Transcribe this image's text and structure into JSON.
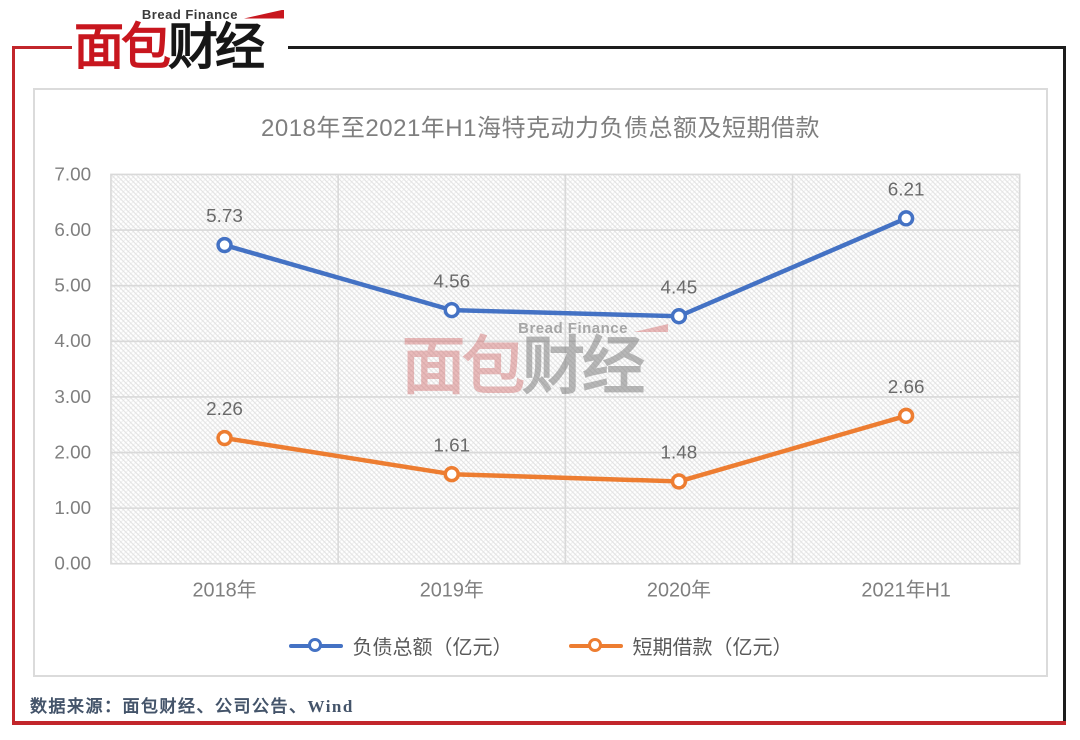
{
  "logo": {
    "tagline": "Bread Finance",
    "brand_red": "面包",
    "brand_dark": "财经"
  },
  "watermark": {
    "tagline": "Bread Finance",
    "brand_red": "面包",
    "brand_gray": "财经"
  },
  "source_note": "数据来源：面包财经、公司公告、Wind",
  "chart_data": {
    "type": "line",
    "title": "2018年至2021年H1海特克动力负债总额及短期借款",
    "categories": [
      "2018年",
      "2019年",
      "2020年",
      "2021年H1"
    ],
    "series": [
      {
        "name": "负债总额（亿元）",
        "color": "#4472C4",
        "values": [
          5.73,
          4.56,
          4.45,
          6.21
        ]
      },
      {
        "name": "短期借款（亿元）",
        "color": "#ED7D31",
        "values": [
          2.26,
          1.61,
          1.48,
          2.66
        ]
      }
    ],
    "ylim": [
      0,
      7
    ],
    "ytick_labels": [
      "0.00",
      "1.00",
      "2.00",
      "3.00",
      "4.00",
      "5.00",
      "6.00",
      "7.00"
    ],
    "grid": true,
    "legend_position": "bottom",
    "plot_background": "light-diagonal-crosshatch",
    "marker": "open-circle",
    "data_labels": true
  },
  "colors": {
    "accent_red": "#C2262B",
    "logo_red": "#C8161E",
    "frame_black": "#1C1C1C",
    "gridline": "#D9D9D9",
    "axis_text": "#7F7F7F",
    "data_label_text": "#6A6A6A",
    "legend_text": "#595959",
    "source_text": "#44546A"
  }
}
